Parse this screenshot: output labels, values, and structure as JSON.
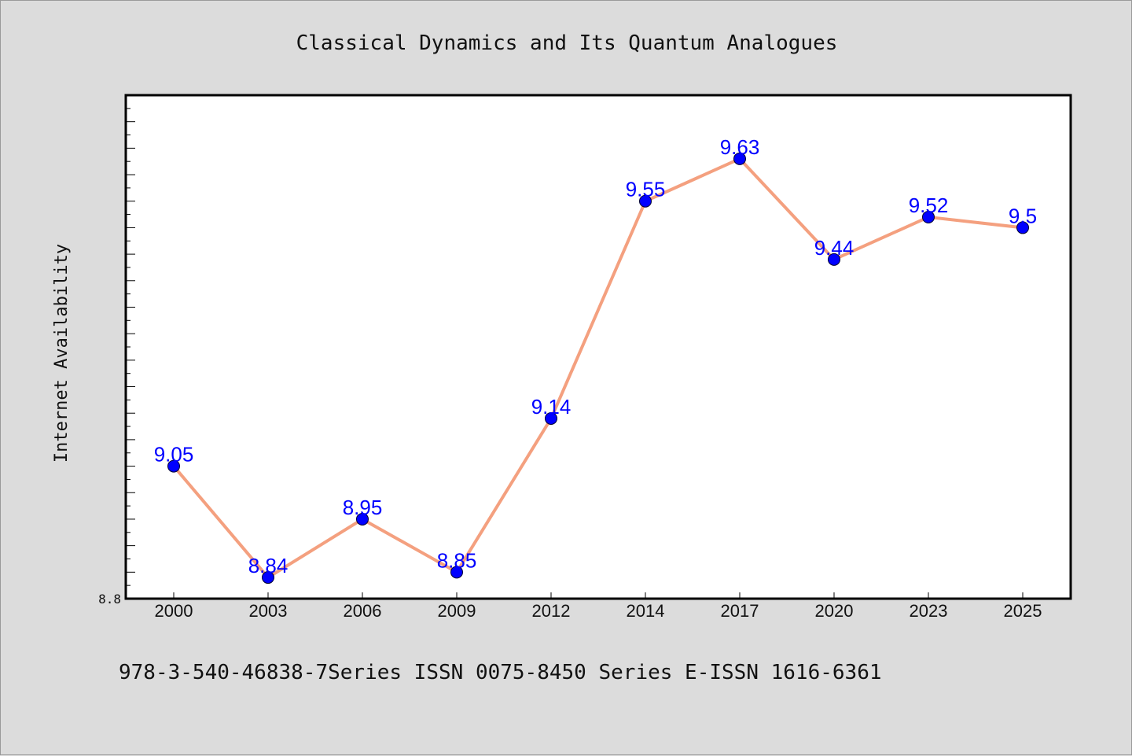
{
  "chart_data": {
    "type": "line",
    "title": "Classical Dynamics and Its Quantum Analogues",
    "xlabel": "",
    "ylabel": "Internet Availability",
    "categories": [
      "2000",
      "2003",
      "2006",
      "2009",
      "2012",
      "2014",
      "2017",
      "2020",
      "2023",
      "2025"
    ],
    "series": [
      {
        "values": [
          9.05,
          8.84,
          8.95,
          8.85,
          9.14,
          9.55,
          9.63,
          9.44,
          9.52,
          9.5
        ],
        "labels": [
          "9.05",
          "8.84",
          "8.95",
          "8.85",
          "9.14",
          "9.55",
          "9.63",
          "9.44",
          "9.52",
          "9.5"
        ]
      }
    ],
    "ylim": [
      8.8,
      9.75
    ],
    "yticks_labeled": [
      "8.8"
    ],
    "grid": false,
    "legend": "none",
    "colors": {
      "line": "#f4a07f",
      "marker": "#0000ff",
      "data_label": "#0000ff",
      "background": "#dcdcdc",
      "plot_bg": "#ffffff"
    }
  },
  "footer": {
    "text": "978-3-540-46838-7Series ISSN 0075-8450 Series E-ISSN 1616-6361"
  }
}
